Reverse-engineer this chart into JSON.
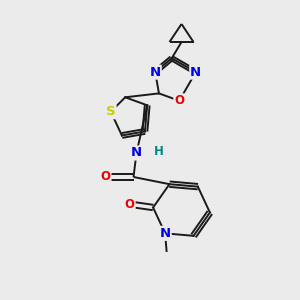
{
  "bg_color": "#ebebeb",
  "bond_color": "#1a1a1a",
  "atom_colors": {
    "N": "#0000ee",
    "O": "#ee0000",
    "S": "#cccc00",
    "H": "#008888",
    "C": "#1a1a1a"
  },
  "lw": 1.4,
  "fs": 9.5
}
